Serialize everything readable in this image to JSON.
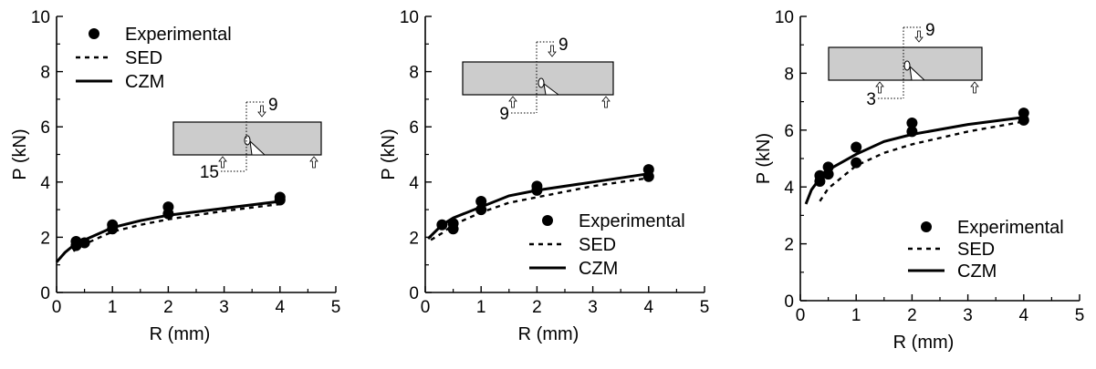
{
  "chart_data": [
    {
      "type": "scatter",
      "xlabel": "R (mm)",
      "ylabel": "P (kN)",
      "xlim": [
        0,
        5
      ],
      "ylim": [
        0,
        10
      ],
      "xticks": [
        "0",
        "1",
        "2",
        "3",
        "4",
        "5"
      ],
      "yticks": [
        "0",
        "2",
        "4",
        "6",
        "8",
        "10"
      ],
      "grid": false,
      "legend_position": "top-left",
      "legend": [
        "Experimental",
        "SED",
        "CZM"
      ],
      "inset_labels": [
        "9",
        "15"
      ],
      "series": [
        {
          "name": "Experimental",
          "style": "markers",
          "points": [
            [
              0.35,
              1.85
            ],
            [
              0.35,
              1.7
            ],
            [
              0.5,
              1.8
            ],
            [
              1.0,
              2.45
            ],
            [
              1.0,
              2.3
            ],
            [
              2.0,
              3.1
            ],
            [
              2.0,
              2.85
            ],
            [
              4.0,
              3.45
            ],
            [
              4.0,
              3.35
            ]
          ]
        },
        {
          "name": "SED",
          "style": "dashed",
          "points": [
            [
              0.3,
              1.5
            ],
            [
              0.5,
              1.75
            ],
            [
              1.0,
              2.2
            ],
            [
              1.5,
              2.45
            ],
            [
              2.0,
              2.65
            ],
            [
              3.0,
              2.95
            ],
            [
              4.0,
              3.2
            ]
          ]
        },
        {
          "name": "CZM",
          "style": "solid",
          "points": [
            [
              0.0,
              1.1
            ],
            [
              0.15,
              1.45
            ],
            [
              0.3,
              1.7
            ],
            [
              0.5,
              1.9
            ],
            [
              1.0,
              2.35
            ],
            [
              1.5,
              2.6
            ],
            [
              2.0,
              2.8
            ],
            [
              3.0,
              3.05
            ],
            [
              4.0,
              3.3
            ]
          ]
        }
      ]
    },
    {
      "type": "scatter",
      "xlabel": "R (mm)",
      "ylabel": "P (kN)",
      "xlim": [
        0,
        5
      ],
      "ylim": [
        0,
        10
      ],
      "xticks": [
        "0",
        "1",
        "2",
        "3",
        "4",
        "5"
      ],
      "yticks": [
        "0",
        "2",
        "4",
        "6",
        "8",
        "10"
      ],
      "grid": false,
      "legend_position": "bottom-right",
      "legend": [
        "Experimental",
        "SED",
        "CZM"
      ],
      "inset_labels": [
        "9",
        "9"
      ],
      "series": [
        {
          "name": "Experimental",
          "style": "markers",
          "points": [
            [
              0.3,
              2.45
            ],
            [
              0.5,
              2.5
            ],
            [
              0.5,
              2.3
            ],
            [
              1.0,
              3.3
            ],
            [
              1.0,
              3.0
            ],
            [
              2.0,
              3.85
            ],
            [
              2.0,
              3.7
            ],
            [
              4.0,
              4.45
            ],
            [
              4.0,
              4.2
            ]
          ]
        },
        {
          "name": "SED",
          "style": "dashed",
          "points": [
            [
              0.1,
              1.9
            ],
            [
              0.3,
              2.15
            ],
            [
              0.5,
              2.45
            ],
            [
              1.0,
              2.9
            ],
            [
              1.5,
              3.25
            ],
            [
              2.0,
              3.45
            ],
            [
              3.0,
              3.85
            ],
            [
              4.0,
              4.15
            ]
          ]
        },
        {
          "name": "CZM",
          "style": "solid",
          "points": [
            [
              0.05,
              1.95
            ],
            [
              0.3,
              2.45
            ],
            [
              0.5,
              2.7
            ],
            [
              1.0,
              3.1
            ],
            [
              1.5,
              3.5
            ],
            [
              2.0,
              3.7
            ],
            [
              3.0,
              4.0
            ],
            [
              4.0,
              4.3
            ]
          ]
        }
      ]
    },
    {
      "type": "scatter",
      "xlabel": "R (mm)",
      "ylabel": "P (kN)",
      "xlim": [
        0,
        5
      ],
      "ylim": [
        0,
        10
      ],
      "xticks": [
        "0",
        "1",
        "2",
        "3",
        "4",
        "5"
      ],
      "yticks": [
        "0",
        "2",
        "4",
        "6",
        "8",
        "10"
      ],
      "grid": false,
      "legend_position": "bottom-right",
      "legend": [
        "Experimental",
        "SED",
        "CZM"
      ],
      "inset_labels": [
        "9",
        "3"
      ],
      "series": [
        {
          "name": "Experimental",
          "style": "markers",
          "points": [
            [
              0.35,
              4.4
            ],
            [
              0.35,
              4.2
            ],
            [
              0.5,
              4.7
            ],
            [
              0.5,
              4.45
            ],
            [
              1.0,
              5.4
            ],
            [
              1.0,
              4.85
            ],
            [
              2.0,
              6.25
            ],
            [
              2.0,
              5.95
            ],
            [
              4.0,
              6.6
            ],
            [
              4.0,
              6.35
            ]
          ]
        },
        {
          "name": "SED",
          "style": "dashed",
          "points": [
            [
              0.35,
              3.5
            ],
            [
              0.5,
              3.95
            ],
            [
              1.0,
              4.75
            ],
            [
              1.5,
              5.2
            ],
            [
              2.0,
              5.5
            ],
            [
              3.0,
              5.95
            ],
            [
              4.0,
              6.3
            ]
          ]
        },
        {
          "name": "CZM",
          "style": "solid",
          "points": [
            [
              0.1,
              3.4
            ],
            [
              0.2,
              3.9
            ],
            [
              0.35,
              4.3
            ],
            [
              0.5,
              4.6
            ],
            [
              1.0,
              5.15
            ],
            [
              1.5,
              5.6
            ],
            [
              2.0,
              5.85
            ],
            [
              3.0,
              6.2
            ],
            [
              4.0,
              6.45
            ]
          ]
        }
      ]
    }
  ]
}
